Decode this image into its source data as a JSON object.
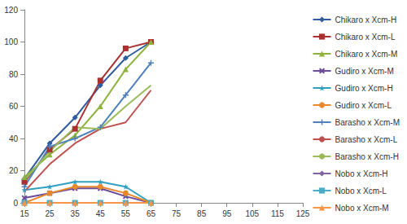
{
  "chart_data": {
    "type": "line",
    "categories": [
      "15",
      "25",
      "35",
      "45",
      "55",
      "65",
      "75",
      "85",
      "95",
      "105",
      "115",
      "125"
    ],
    "series": [
      {
        "name": "Chikaro x Xcm-H",
        "color": "#2E5C9E",
        "marker": "diamond",
        "values": [
          15,
          37,
          53,
          73,
          90,
          100,
          null,
          null,
          null,
          null,
          null,
          null
        ]
      },
      {
        "name": "Chikaro x Xcm-L",
        "color": "#A93030",
        "marker": "square",
        "values": [
          13,
          33,
          46,
          76,
          96,
          100,
          null,
          null,
          null,
          null,
          null,
          null
        ]
      },
      {
        "name": "Chikaro x Xcm-M",
        "color": "#8DB33D",
        "marker": "triangle",
        "values": [
          16,
          30,
          42,
          60,
          83,
          100,
          null,
          null,
          null,
          null,
          null,
          null
        ]
      },
      {
        "name": "Gudiro x Xcm-M",
        "color": "#6B4C9A",
        "marker": "x",
        "values": [
          3,
          6,
          9,
          9,
          4,
          0,
          null,
          null,
          null,
          null,
          null,
          null
        ]
      },
      {
        "name": "Gudiro x Xcm-H",
        "color": "#31A0C0",
        "marker": "star",
        "values": [
          8,
          10,
          13,
          13,
          10,
          0,
          null,
          null,
          null,
          null,
          null,
          null
        ]
      },
      {
        "name": "Gudiro x Xcm-L",
        "color": "#E88A2C",
        "marker": "circle",
        "values": [
          0,
          6,
          10,
          10,
          6,
          0,
          null,
          null,
          null,
          null,
          null,
          null
        ]
      },
      {
        "name": "Barasho x Xcm-M",
        "color": "#4F81BD",
        "marker": "plus",
        "values": [
          10,
          35,
          40,
          47,
          67,
          87,
          null,
          null,
          null,
          null,
          null,
          null
        ]
      },
      {
        "name": "Barasho x Xcm-L",
        "color": "#C0504D",
        "marker": "none",
        "values": [
          7,
          24,
          37,
          46,
          50,
          70,
          null,
          null,
          null,
          null,
          null,
          null
        ]
      },
      {
        "name": "Barasho x Xcm-H",
        "color": "#9BBB59",
        "marker": "none",
        "values": [
          14,
          32,
          47,
          46,
          60,
          73,
          null,
          null,
          null,
          null,
          null,
          null
        ]
      },
      {
        "name": "Nobo x Xcm-H",
        "color": "#8064A2",
        "marker": "diamond",
        "values": [
          0,
          0,
          0,
          0,
          0,
          0,
          null,
          null,
          null,
          null,
          null,
          null
        ]
      },
      {
        "name": "Nobo x Xcm-L",
        "color": "#4BACC6",
        "marker": "square",
        "values": [
          0,
          0,
          0,
          0,
          0,
          0,
          null,
          null,
          null,
          null,
          null,
          null
        ]
      },
      {
        "name": "Nobo x Xcm-M",
        "color": "#F79646",
        "marker": "triangle",
        "values": [
          0,
          0,
          0,
          0,
          0,
          0,
          null,
          null,
          null,
          null,
          null,
          null
        ]
      }
    ],
    "ylim": [
      0,
      120
    ],
    "yticks": [
      0,
      20,
      40,
      60,
      80,
      100,
      120
    ],
    "grid": false,
    "legend": "right"
  }
}
